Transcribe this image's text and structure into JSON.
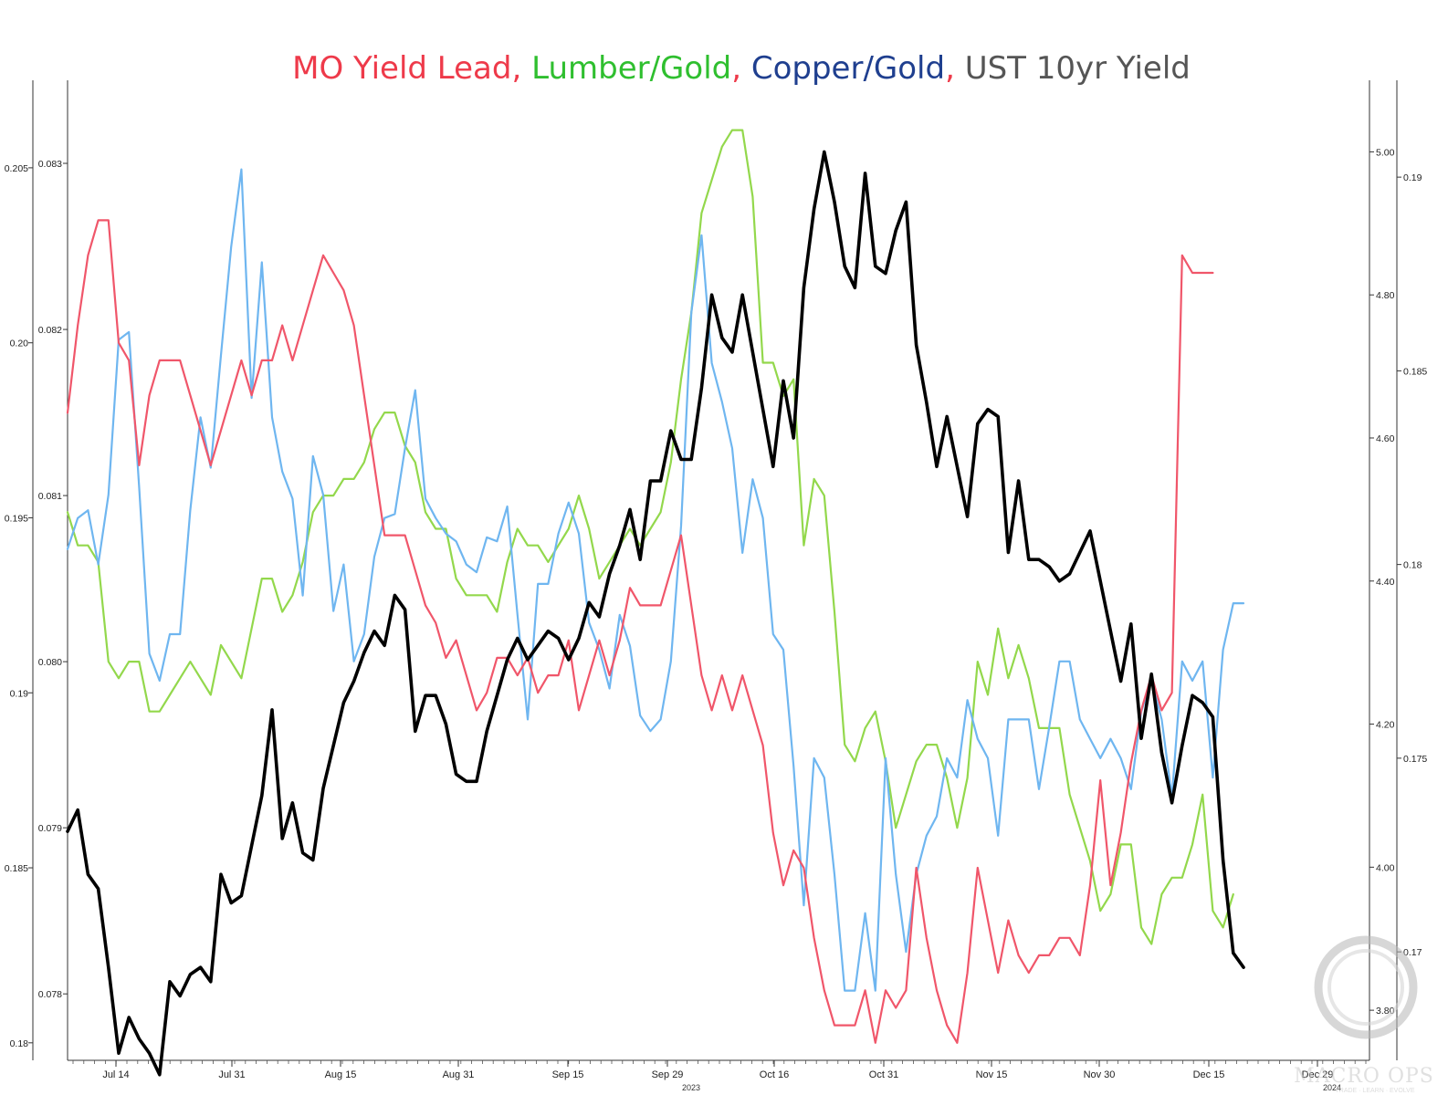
{
  "title": {
    "parts": [
      {
        "text": "MO Yield Lead",
        "color": "#ee3a4a"
      },
      {
        "text": ", ",
        "color": "#ee3a4a"
      },
      {
        "text": "Lumber/Gold",
        "color": "#2fbf2f"
      },
      {
        "text": ", ",
        "color": "#ee3a4a"
      },
      {
        "text": "Copper/Gold",
        "color": "#1f3f8f"
      },
      {
        "text": ", ",
        "color": "#ee3a4a"
      },
      {
        "text": "UST 10yr Yield",
        "color": "#555555"
      }
    ]
  },
  "watermark": {
    "text": "MACRO OPS",
    "tagline": "TRADE · LEARN · EVOLVE"
  },
  "chart_data": {
    "type": "line",
    "x_ticks": [
      "Jul 14",
      "Jul 31",
      "Aug 15",
      "Aug 31",
      "Sep 15",
      "Sep 29",
      "Oct 16",
      "Oct 31",
      "Nov 15",
      "Nov 30",
      "Dec 15",
      "Dec 29"
    ],
    "x_year_labels": [
      "2023",
      "2024"
    ],
    "axes": {
      "left_outer": {
        "ticks": [
          "0.18",
          "0.185",
          "0.19",
          "0.195",
          "0.20",
          "0.205"
        ],
        "range": [
          0.1795,
          0.2075
        ]
      },
      "left_inner": {
        "ticks": [
          "0.078",
          "0.079",
          "0.080",
          "0.081",
          "0.082",
          "0.083"
        ],
        "range": [
          0.0776,
          0.0835
        ]
      },
      "right_inner": {
        "ticks": [
          "3.80",
          "4.00",
          "4.20",
          "4.40",
          "4.60",
          "4.80",
          "5.00"
        ],
        "range": [
          3.73,
          5.1
        ]
      },
      "right_outer": {
        "ticks": [
          "0.17",
          "0.175",
          "0.18",
          "0.185",
          "0.19"
        ],
        "range": [
          0.1672,
          0.1925
        ]
      }
    },
    "series": [
      {
        "name": "MO Yield Lead",
        "color": "#f0566a",
        "axis": "left_outer",
        "values": [
          0.198,
          0.2005,
          0.2025,
          0.2035,
          0.2035,
          0.2,
          0.1995,
          0.1965,
          0.1985,
          0.1995,
          0.1995,
          0.1995,
          0.1985,
          0.1975,
          0.1965,
          0.1975,
          0.1985,
          0.1995,
          0.1985,
          0.1995,
          0.1995,
          0.2005,
          0.1995,
          0.2005,
          0.2015,
          0.2025,
          0.202,
          0.2015,
          0.2005,
          0.1985,
          0.1965,
          0.1945,
          0.1945,
          0.1945,
          0.1935,
          0.1925,
          0.192,
          0.191,
          0.1915,
          0.1905,
          0.1895,
          0.19,
          0.191,
          0.191,
          0.1905,
          0.191,
          0.19,
          0.1905,
          0.1905,
          0.1915,
          0.1895,
          0.1905,
          0.1915,
          0.1905,
          0.1915,
          0.193,
          0.1925,
          0.1925,
          0.1925,
          0.1935,
          0.1945,
          0.1925,
          0.1905,
          0.1895,
          0.1905,
          0.1895,
          0.1905,
          0.1895,
          0.1885,
          0.186,
          0.1845,
          0.1855,
          0.185,
          0.183,
          0.1815,
          0.1805,
          0.1805,
          0.1805,
          0.1815,
          0.18,
          0.1815,
          0.181,
          0.1815,
          0.185,
          0.183,
          0.1815,
          0.1805,
          0.18,
          0.182,
          0.185,
          0.1835,
          0.182,
          0.1835,
          0.1825,
          0.182,
          0.1825,
          0.1825,
          0.183,
          0.183,
          0.1825,
          0.1845,
          0.1875,
          0.1845,
          0.186,
          0.188,
          0.1895,
          0.1905,
          0.1895,
          0.19,
          0.2025,
          0.202,
          0.202,
          0.202
        ]
      },
      {
        "name": "Lumber/Gold",
        "color": "#93d84c",
        "axis": "left_inner",
        "values": [
          0.0809,
          0.0807,
          0.0807,
          0.0806,
          0.08,
          0.0799,
          0.08,
          0.08,
          0.0797,
          0.0797,
          0.0798,
          0.0799,
          0.08,
          0.0799,
          0.0798,
          0.0801,
          0.08,
          0.0799,
          0.0802,
          0.0805,
          0.0805,
          0.0803,
          0.0804,
          0.0806,
          0.0809,
          0.081,
          0.081,
          0.0811,
          0.0811,
          0.0812,
          0.0814,
          0.0815,
          0.0815,
          0.0813,
          0.0812,
          0.0809,
          0.0808,
          0.0808,
          0.0805,
          0.0804,
          0.0804,
          0.0804,
          0.0803,
          0.0806,
          0.0808,
          0.0807,
          0.0807,
          0.0806,
          0.0807,
          0.0808,
          0.081,
          0.0808,
          0.0805,
          0.0806,
          0.0807,
          0.0808,
          0.0807,
          0.0808,
          0.0809,
          0.0812,
          0.0817,
          0.0821,
          0.0827,
          0.0829,
          0.0831,
          0.0832,
          0.0832,
          0.0828,
          0.0818,
          0.0818,
          0.0816,
          0.0817,
          0.0807,
          0.0811,
          0.081,
          0.0803,
          0.0795,
          0.0794,
          0.0796,
          0.0797,
          0.0794,
          0.079,
          0.0792,
          0.0794,
          0.0795,
          0.0795,
          0.0793,
          0.079,
          0.0793,
          0.08,
          0.0798,
          0.0802,
          0.0799,
          0.0801,
          0.0799,
          0.0796,
          0.0796,
          0.0796,
          0.0792,
          0.079,
          0.0788,
          0.0785,
          0.0786,
          0.0789,
          0.0789,
          0.0784,
          0.0783,
          0.0786,
          0.0787,
          0.0787,
          0.0789,
          0.0792,
          0.0785,
          0.0784,
          0.0786
        ]
      },
      {
        "name": "Copper/Gold",
        "color": "#6fb6f0",
        "axis": "right_outer",
        "values": [
          0.1804,
          0.1812,
          0.1814,
          0.18,
          0.1818,
          0.1858,
          0.186,
          0.182,
          0.1777,
          0.177,
          0.1782,
          0.1782,
          0.1814,
          0.1838,
          0.1825,
          0.1854,
          0.1882,
          0.1902,
          0.1843,
          0.1878,
          0.1838,
          0.1824,
          0.1817,
          0.1792,
          0.1828,
          0.1818,
          0.1788,
          0.18,
          0.1775,
          0.1782,
          0.1802,
          0.1812,
          0.1813,
          0.183,
          0.1845,
          0.1817,
          0.1812,
          0.1808,
          0.1806,
          0.18,
          0.1798,
          0.1807,
          0.1806,
          0.1815,
          0.1787,
          0.176,
          0.1795,
          0.1795,
          0.1808,
          0.1816,
          0.1808,
          0.1785,
          0.1778,
          0.1768,
          0.1787,
          0.1779,
          0.1761,
          0.1757,
          0.176,
          0.1775,
          0.181,
          0.1865,
          0.1885,
          0.1852,
          0.1842,
          0.183,
          0.1803,
          0.1822,
          0.1812,
          0.1782,
          0.1778,
          0.1748,
          0.1712,
          0.175,
          0.1745,
          0.172,
          0.169,
          0.169,
          0.171,
          0.169,
          0.175,
          0.172,
          0.17,
          0.172,
          0.173,
          0.1735,
          0.175,
          0.1745,
          0.1765,
          0.1755,
          0.175,
          0.173,
          0.176,
          0.176,
          0.176,
          0.1742,
          0.1758,
          0.1775,
          0.1775,
          0.176,
          0.1755,
          0.175,
          0.1755,
          0.175,
          0.1742,
          0.1762,
          0.177,
          0.176,
          0.174,
          0.1775,
          0.177,
          0.1775,
          0.1745,
          0.1778,
          0.179,
          0.179
        ]
      },
      {
        "name": "UST 10yr Yield",
        "color": "#000000",
        "axis": "right_inner",
        "values": [
          4.05,
          4.08,
          3.99,
          3.97,
          3.86,
          3.74,
          3.79,
          3.76,
          3.74,
          3.71,
          3.84,
          3.82,
          3.85,
          3.86,
          3.84,
          3.99,
          3.95,
          3.96,
          4.03,
          4.1,
          4.22,
          4.04,
          4.09,
          4.02,
          4.01,
          4.11,
          4.17,
          4.23,
          4.26,
          4.3,
          4.33,
          4.31,
          4.38,
          4.36,
          4.19,
          4.24,
          4.24,
          4.2,
          4.13,
          4.12,
          4.12,
          4.19,
          4.24,
          4.29,
          4.32,
          4.29,
          4.31,
          4.33,
          4.32,
          4.29,
          4.32,
          4.37,
          4.35,
          4.41,
          4.45,
          4.5,
          4.43,
          4.54,
          4.54,
          4.61,
          4.57,
          4.57,
          4.67,
          4.8,
          4.74,
          4.72,
          4.8,
          4.72,
          4.64,
          4.56,
          4.68,
          4.6,
          4.81,
          4.92,
          5.0,
          4.93,
          4.84,
          4.81,
          4.97,
          4.84,
          4.83,
          4.89,
          4.93,
          4.73,
          4.65,
          4.56,
          4.63,
          4.56,
          4.49,
          4.62,
          4.64,
          4.63,
          4.44,
          4.54,
          4.43,
          4.43,
          4.42,
          4.4,
          4.41,
          4.44,
          4.47,
          4.4,
          4.33,
          4.26,
          4.34,
          4.18,
          4.27,
          4.16,
          4.09,
          4.17,
          4.24,
          4.23,
          4.21,
          4.01,
          3.88,
          3.86
        ]
      }
    ]
  }
}
